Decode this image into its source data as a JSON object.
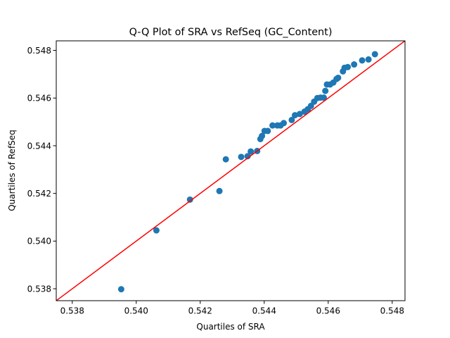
{
  "chart_data": {
    "type": "scatter",
    "title": "Q-Q Plot of SRA vs RefSeq (GC_Content)",
    "xlabel": "Quartiles of SRA",
    "ylabel": "Quartiles of RefSeq",
    "xlim": [
      0.5375,
      0.5484
    ],
    "ylim": [
      0.5375,
      0.5484
    ],
    "xticks": [
      0.538,
      0.54,
      0.542,
      0.544,
      0.546,
      0.548
    ],
    "yticks": [
      0.538,
      0.54,
      0.542,
      0.544,
      0.546,
      0.548
    ],
    "xtick_labels": [
      "0.538",
      "0.540",
      "0.542",
      "0.544",
      "0.546",
      "0.548"
    ],
    "ytick_labels": [
      "0.538",
      "0.540",
      "0.542",
      "0.544",
      "0.546",
      "0.548"
    ],
    "grid": false,
    "marker_color": "#1f77b4",
    "reference_line": {
      "color": "#ff0000",
      "slope": 1,
      "intercept": 0
    },
    "points": [
      [
        0.53953,
        0.53798
      ],
      [
        0.54063,
        0.54045
      ],
      [
        0.54168,
        0.54174
      ],
      [
        0.5426,
        0.5421
      ],
      [
        0.5428,
        0.54343
      ],
      [
        0.54328,
        0.54353
      ],
      [
        0.54348,
        0.54356
      ],
      [
        0.54358,
        0.54376
      ],
      [
        0.54378,
        0.54378
      ],
      [
        0.54388,
        0.54428
      ],
      [
        0.54393,
        0.54441
      ],
      [
        0.54401,
        0.54462
      ],
      [
        0.54411,
        0.54462
      ],
      [
        0.54426,
        0.54485
      ],
      [
        0.54441,
        0.54485
      ],
      [
        0.54451,
        0.54485
      ],
      [
        0.54461,
        0.54495
      ],
      [
        0.54486,
        0.54508
      ],
      [
        0.54496,
        0.54528
      ],
      [
        0.54511,
        0.54533
      ],
      [
        0.54526,
        0.54543
      ],
      [
        0.54536,
        0.54553
      ],
      [
        0.54546,
        0.54567
      ],
      [
        0.54556,
        0.54585
      ],
      [
        0.54566,
        0.546
      ],
      [
        0.54576,
        0.54602
      ],
      [
        0.54586,
        0.54602
      ],
      [
        0.54591,
        0.5463
      ],
      [
        0.54596,
        0.54657
      ],
      [
        0.54606,
        0.54657
      ],
      [
        0.54616,
        0.54665
      ],
      [
        0.54626,
        0.5468
      ],
      [
        0.54631,
        0.54685
      ],
      [
        0.54646,
        0.54712
      ],
      [
        0.54651,
        0.54727
      ],
      [
        0.54661,
        0.5473
      ],
      [
        0.54681,
        0.54741
      ],
      [
        0.54706,
        0.54758
      ],
      [
        0.54726,
        0.54762
      ],
      [
        0.54746,
        0.54784
      ]
    ]
  }
}
